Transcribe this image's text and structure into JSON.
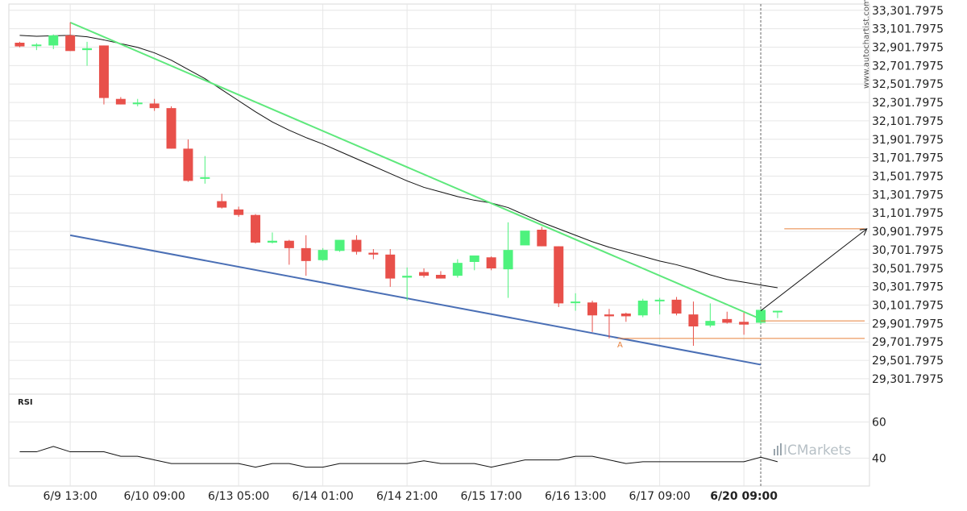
{
  "chart_data": {
    "type": "candlestick",
    "watermark": "www.autochartist.com",
    "brand": "ICMarkets",
    "colors": {
      "up": "#4ef27d",
      "down": "#e8504a",
      "resistance": "#5ee87c",
      "support": "#4a6fb5",
      "ma": "#111111",
      "target": "#e8803c",
      "arrow": "#111111",
      "grid": "#e6e6e6"
    },
    "y_ticks": [
      "33,301.7975",
      "33,101.7975",
      "32,901.7975",
      "32,701.7975",
      "32,501.7975",
      "32,301.7975",
      "32,101.7975",
      "31,901.7975",
      "31,701.7975",
      "31,501.7975",
      "31,301.7975",
      "31,101.7975",
      "30,901.7975",
      "30,701.7975",
      "30,501.7975",
      "30,301.7975",
      "30,101.7975",
      "29,901.7975",
      "29,701.7975",
      "29,501.7975",
      "29,301.7975"
    ],
    "ylim": [
      29135,
      33370
    ],
    "x_ticks": [
      {
        "label": "6/9 13:00",
        "index": 3.5,
        "bold": false
      },
      {
        "label": "6/10 09:00",
        "index": 8.5,
        "bold": false
      },
      {
        "label": "6/13 05:00",
        "index": 13.5,
        "bold": false
      },
      {
        "label": "6/14 01:00",
        "index": 18.5,
        "bold": false
      },
      {
        "label": "6/14 21:00",
        "index": 23.5,
        "bold": false
      },
      {
        "label": "6/15 17:00",
        "index": 28.5,
        "bold": false
      },
      {
        "label": "6/16 13:00",
        "index": 33.5,
        "bold": false
      },
      {
        "label": "6/17 09:00",
        "index": 38.5,
        "bold": false
      },
      {
        "label": "6/20 09:00",
        "index": 43.5,
        "bold": true
      }
    ],
    "candles": [
      {
        "o": 32950,
        "h": 32960,
        "l": 32900,
        "c": 32910
      },
      {
        "o": 32925,
        "h": 32945,
        "l": 32870,
        "c": 32930
      },
      {
        "o": 32920,
        "h": 33040,
        "l": 32880,
        "c": 33030
      },
      {
        "o": 33030,
        "h": 33170,
        "l": 32860,
        "c": 32860
      },
      {
        "o": 32870,
        "h": 32960,
        "l": 32700,
        "c": 32890
      },
      {
        "o": 32920,
        "h": 32920,
        "l": 32280,
        "c": 32350
      },
      {
        "o": 32340,
        "h": 32360,
        "l": 32280,
        "c": 32280
      },
      {
        "o": 32300,
        "h": 32340,
        "l": 32260,
        "c": 32300
      },
      {
        "o": 32290,
        "h": 32340,
        "l": 32210,
        "c": 32240
      },
      {
        "o": 32240,
        "h": 32260,
        "l": 31800,
        "c": 31800
      },
      {
        "o": 31800,
        "h": 31900,
        "l": 31440,
        "c": 31450
      },
      {
        "o": 31480,
        "h": 31720,
        "l": 31420,
        "c": 31490
      },
      {
        "o": 31230,
        "h": 31310,
        "l": 31150,
        "c": 31160
      },
      {
        "o": 31140,
        "h": 31170,
        "l": 31060,
        "c": 31080
      },
      {
        "o": 31080,
        "h": 31090,
        "l": 30770,
        "c": 30780
      },
      {
        "o": 30780,
        "h": 30890,
        "l": 30770,
        "c": 30800
      },
      {
        "o": 30800,
        "h": 30810,
        "l": 30540,
        "c": 30720
      },
      {
        "o": 30720,
        "h": 30860,
        "l": 30420,
        "c": 30580
      },
      {
        "o": 30590,
        "h": 30720,
        "l": 30580,
        "c": 30700
      },
      {
        "o": 30690,
        "h": 30800,
        "l": 30680,
        "c": 30810
      },
      {
        "o": 30810,
        "h": 30860,
        "l": 30650,
        "c": 30680
      },
      {
        "o": 30670,
        "h": 30710,
        "l": 30600,
        "c": 30650
      },
      {
        "o": 30650,
        "h": 30710,
        "l": 30300,
        "c": 30390
      },
      {
        "o": 30400,
        "h": 30510,
        "l": 30150,
        "c": 30420
      },
      {
        "o": 30460,
        "h": 30500,
        "l": 30400,
        "c": 30420
      },
      {
        "o": 30430,
        "h": 30470,
        "l": 30390,
        "c": 30390
      },
      {
        "o": 30420,
        "h": 30600,
        "l": 30400,
        "c": 30560
      },
      {
        "o": 30570,
        "h": 30640,
        "l": 30480,
        "c": 30640
      },
      {
        "o": 30620,
        "h": 30630,
        "l": 30480,
        "c": 30500
      },
      {
        "o": 30490,
        "h": 31000,
        "l": 30180,
        "c": 30700
      },
      {
        "o": 30750,
        "h": 30900,
        "l": 30760,
        "c": 30910
      },
      {
        "o": 30920,
        "h": 30950,
        "l": 30740,
        "c": 30740
      },
      {
        "o": 30740,
        "h": 30740,
        "l": 30080,
        "c": 30120
      },
      {
        "o": 30140,
        "h": 30230,
        "l": 30040,
        "c": 30140
      },
      {
        "o": 30130,
        "h": 30150,
        "l": 29810,
        "c": 29990
      },
      {
        "o": 30000,
        "h": 30060,
        "l": 29740,
        "c": 29980
      },
      {
        "o": 30010,
        "h": 30020,
        "l": 29920,
        "c": 29980
      },
      {
        "o": 29990,
        "h": 30170,
        "l": 29970,
        "c": 30150
      },
      {
        "o": 30150,
        "h": 30180,
        "l": 30000,
        "c": 30160
      },
      {
        "o": 30160,
        "h": 30190,
        "l": 29990,
        "c": 30010
      },
      {
        "o": 30000,
        "h": 30140,
        "l": 29660,
        "c": 29870
      },
      {
        "o": 29880,
        "h": 30120,
        "l": 29860,
        "c": 29930
      },
      {
        "o": 29950,
        "h": 30030,
        "l": 29900,
        "c": 29910
      },
      {
        "o": 29920,
        "h": 30020,
        "l": 29780,
        "c": 29890
      },
      {
        "o": 29910,
        "h": 30060,
        "l": 29890,
        "c": 30050
      },
      {
        "o": 30040,
        "h": 30040,
        "l": 29960,
        "c": 30040
      }
    ],
    "moving_average": [
      [
        0,
        33030
      ],
      [
        1,
        33020
      ],
      [
        2,
        33025
      ],
      [
        3,
        33030
      ],
      [
        4,
        33015
      ],
      [
        5,
        32980
      ],
      [
        6,
        32940
      ],
      [
        7,
        32900
      ],
      [
        8,
        32840
      ],
      [
        9,
        32760
      ],
      [
        10,
        32660
      ],
      [
        11,
        32560
      ],
      [
        12,
        32440
      ],
      [
        13,
        32320
      ],
      [
        14,
        32200
      ],
      [
        15,
        32090
      ],
      [
        16,
        32000
      ],
      [
        17,
        31920
      ],
      [
        18,
        31850
      ],
      [
        19,
        31770
      ],
      [
        20,
        31690
      ],
      [
        21,
        31610
      ],
      [
        22,
        31530
      ],
      [
        23,
        31450
      ],
      [
        24,
        31380
      ],
      [
        25,
        31330
      ],
      [
        26,
        31280
      ],
      [
        27,
        31240
      ],
      [
        28,
        31210
      ],
      [
        29,
        31160
      ],
      [
        30,
        31080
      ],
      [
        31,
        31000
      ],
      [
        32,
        30930
      ],
      [
        33,
        30860
      ],
      [
        34,
        30790
      ],
      [
        35,
        30730
      ],
      [
        36,
        30680
      ],
      [
        37,
        30630
      ],
      [
        38,
        30580
      ],
      [
        39,
        30540
      ],
      [
        40,
        30490
      ],
      [
        41,
        30430
      ],
      [
        42,
        30380
      ],
      [
        43,
        30350
      ],
      [
        44,
        30320
      ],
      [
        45,
        30290
      ]
    ],
    "resistance_line": [
      [
        3,
        33170
      ],
      [
        44,
        29950
      ]
    ],
    "support_line": [
      [
        3,
        30860
      ],
      [
        44,
        29455
      ]
    ],
    "forecast": {
      "from": [
        44,
        30040
      ],
      "to": [
        50.3,
        30930
      ],
      "target_level": 30930,
      "target_from_index": 45.4
    },
    "levels": [
      {
        "value": 29930,
        "from_index": 44,
        "label": ""
      },
      {
        "value": 29740,
        "from_index": 35.5,
        "label": "A"
      }
    ],
    "current_index": 44,
    "rsi": {
      "label": "RSI",
      "ticks": [
        60,
        40
      ],
      "ylim": [
        25,
        75
      ],
      "values": [
        43.5,
        43.5,
        46.5,
        43.5,
        43.5,
        43.5,
        41,
        41,
        39,
        37,
        37,
        37,
        37,
        37,
        35,
        37,
        37,
        35,
        35,
        37,
        37,
        37,
        37,
        37,
        38.5,
        37,
        37,
        37,
        35,
        37,
        39,
        39,
        39,
        41,
        41,
        39,
        37,
        38,
        38,
        38,
        38,
        38,
        38,
        38,
        40.5,
        38
      ]
    }
  }
}
